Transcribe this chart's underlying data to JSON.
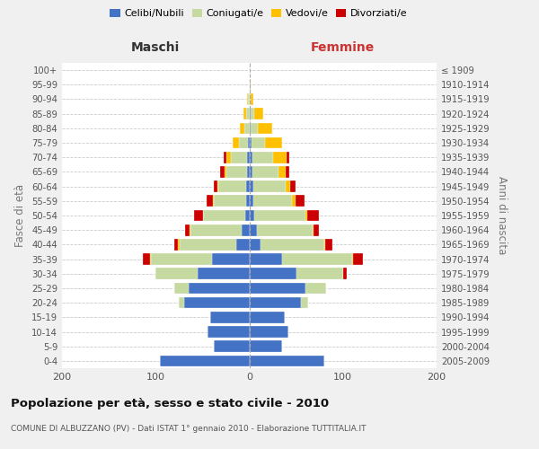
{
  "age_groups": [
    "0-4",
    "5-9",
    "10-14",
    "15-19",
    "20-24",
    "25-29",
    "30-34",
    "35-39",
    "40-44",
    "45-49",
    "50-54",
    "55-59",
    "60-64",
    "65-69",
    "70-74",
    "75-79",
    "80-84",
    "85-89",
    "90-94",
    "95-99",
    "100+"
  ],
  "birth_years": [
    "2005-2009",
    "2000-2004",
    "1995-1999",
    "1990-1994",
    "1985-1989",
    "1980-1984",
    "1975-1979",
    "1970-1974",
    "1965-1969",
    "1960-1964",
    "1955-1959",
    "1950-1954",
    "1945-1949",
    "1940-1944",
    "1935-1939",
    "1930-1934",
    "1925-1929",
    "1920-1924",
    "1915-1919",
    "1910-1914",
    "≤ 1909"
  ],
  "male_celibe": [
    95,
    38,
    45,
    42,
    70,
    65,
    55,
    40,
    14,
    8,
    4,
    3,
    3,
    2,
    2,
    1,
    0,
    0,
    0,
    0,
    0
  ],
  "male_coniugato": [
    0,
    0,
    0,
    0,
    5,
    15,
    45,
    65,
    60,
    55,
    45,
    35,
    30,
    22,
    18,
    10,
    5,
    3,
    1,
    0,
    0
  ],
  "male_vedovo": [
    0,
    0,
    0,
    0,
    0,
    0,
    0,
    1,
    2,
    1,
    0,
    1,
    1,
    2,
    4,
    7,
    5,
    3,
    1,
    0,
    0
  ],
  "male_divorziato": [
    0,
    0,
    0,
    0,
    0,
    0,
    0,
    8,
    4,
    5,
    10,
    7,
    4,
    5,
    3,
    0,
    0,
    0,
    0,
    0,
    0
  ],
  "female_celibe": [
    80,
    35,
    42,
    38,
    55,
    60,
    50,
    35,
    12,
    8,
    5,
    4,
    4,
    3,
    3,
    2,
    1,
    1,
    0,
    0,
    0
  ],
  "female_coniugato": [
    0,
    0,
    0,
    0,
    8,
    22,
    50,
    75,
    68,
    60,
    55,
    42,
    35,
    28,
    22,
    15,
    8,
    4,
    1,
    0,
    0
  ],
  "female_vedovo": [
    0,
    0,
    0,
    0,
    0,
    0,
    0,
    1,
    1,
    1,
    2,
    3,
    5,
    8,
    15,
    18,
    15,
    10,
    3,
    1,
    0
  ],
  "female_divorziato": [
    0,
    0,
    0,
    0,
    0,
    0,
    4,
    10,
    8,
    5,
    12,
    10,
    5,
    4,
    3,
    0,
    0,
    0,
    0,
    0,
    0
  ],
  "color_celibe": "#4472c4",
  "color_coniugato": "#c5d9a0",
  "color_vedovo": "#ffc000",
  "color_divorziato": "#cc0000",
  "title": "Popolazione per età, sesso e stato civile - 2010",
  "subtitle": "COMUNE DI ALBUZZANO (PV) - Dati ISTAT 1° gennaio 2010 - Elaborazione TUTTITALIA.IT",
  "ylabel_left": "Fasce di età",
  "ylabel_right": "Anni di nascita",
  "xlabel_left": "Maschi",
  "xlabel_right": "Femmine",
  "xlim": 200,
  "bg_color": "#f0f0f0",
  "plot_bg": "#ffffff"
}
